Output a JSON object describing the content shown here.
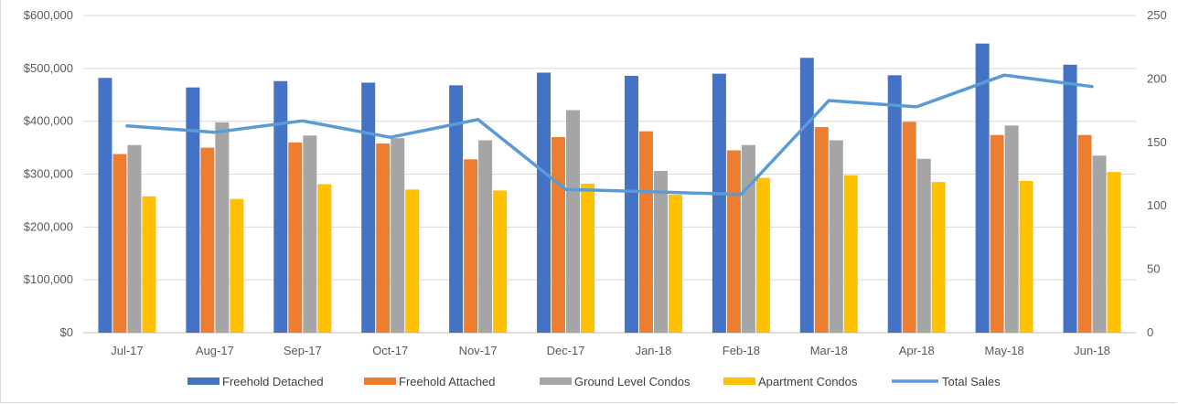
{
  "chart_data": {
    "type": "bar",
    "categories": [
      "Jul-17",
      "Aug-17",
      "Sep-17",
      "Oct-17",
      "Nov-17",
      "Dec-17",
      "Jan-18",
      "Feb-18",
      "Mar-18",
      "Apr-18",
      "May-18",
      "Jun-18"
    ],
    "series": [
      {
        "name": "Freehold Detached",
        "type": "bar",
        "axis": "left",
        "color": "#4472C4",
        "values": [
          482000,
          464000,
          476000,
          473000,
          468000,
          492000,
          486000,
          490000,
          520000,
          487000,
          547000,
          507000
        ]
      },
      {
        "name": "Freehold Attached",
        "type": "bar",
        "axis": "left",
        "color": "#ED7D31",
        "values": [
          338000,
          350000,
          360000,
          358000,
          328000,
          370000,
          381000,
          345000,
          389000,
          399000,
          374000,
          374000
        ]
      },
      {
        "name": "Ground Level Condos",
        "type": "bar",
        "axis": "left",
        "color": "#A5A5A5",
        "values": [
          355000,
          398000,
          373000,
          368000,
          364000,
          421000,
          306000,
          355000,
          364000,
          329000,
          392000,
          335000
        ]
      },
      {
        "name": "Apartment Condos",
        "type": "bar",
        "axis": "left",
        "color": "#FFC000",
        "values": [
          258000,
          253000,
          281000,
          271000,
          269000,
          282000,
          261000,
          293000,
          298000,
          285000,
          287000,
          304000
        ]
      },
      {
        "name": "Total Sales",
        "type": "line",
        "axis": "right",
        "color": "#5B9BD5",
        "values": [
          163,
          158,
          167,
          154,
          168,
          113,
          111,
          109,
          183,
          178,
          203,
          194
        ]
      }
    ],
    "y_left": {
      "min": 0,
      "max": 600000,
      "step": 100000,
      "tick_labels": [
        "$0",
        "$100,000",
        "$200,000",
        "$300,000",
        "$400,000",
        "$500,000",
        "$600,000"
      ]
    },
    "y_right": {
      "min": 0,
      "max": 250,
      "step": 50,
      "tick_labels": [
        "0",
        "50",
        "100",
        "150",
        "200",
        "250"
      ]
    },
    "grid": true,
    "legend_position": "bottom"
  }
}
